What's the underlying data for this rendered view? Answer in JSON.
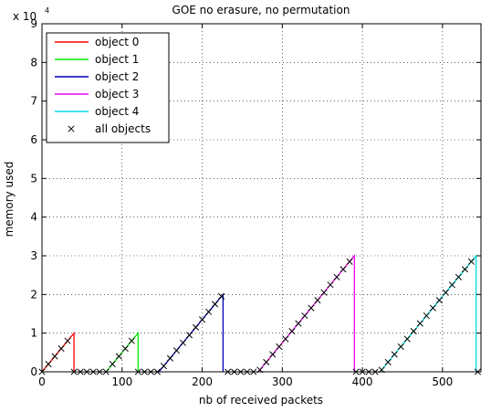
{
  "chart_data": {
    "type": "line",
    "title": "GOE no erasure, no permutation",
    "xlabel": "nb of received packets",
    "ylabel": "memory used",
    "y_exponent_base": "x 10",
    "y_exponent_power": "4",
    "xlim": [
      0,
      548
    ],
    "ylim": [
      0,
      9
    ],
    "x_ticks": [
      0,
      100,
      200,
      300,
      400,
      500
    ],
    "x_tick_labels": [
      "0",
      "100",
      "200",
      "300",
      "400",
      "500"
    ],
    "y_ticks": [
      0,
      1,
      2,
      3,
      4,
      5,
      6,
      7,
      8,
      9
    ],
    "y_tick_labels": [
      "0",
      "1",
      "2",
      "3",
      "4",
      "5",
      "6",
      "7",
      "8",
      "9"
    ],
    "grid": true,
    "legend_position": "top-left",
    "series": [
      {
        "name": "object 0",
        "color": "#ff0000",
        "x": [
          0,
          40,
          40
        ],
        "y": [
          0,
          1,
          0
        ]
      },
      {
        "name": "object 1",
        "color": "#00ee00",
        "x": [
          80,
          120,
          120
        ],
        "y": [
          0,
          1,
          0
        ]
      },
      {
        "name": "object 2",
        "color": "#0000bb",
        "x": [
          146,
          226,
          226
        ],
        "y": [
          0,
          2,
          0
        ]
      },
      {
        "name": "object 3",
        "color": "#ee00ee",
        "x": [
          270,
          390,
          390
        ],
        "y": [
          0,
          3,
          0
        ]
      },
      {
        "name": "object 4",
        "color": "#00dddd",
        "x": [
          422,
          542,
          542
        ],
        "y": [
          0,
          3,
          0
        ]
      }
    ],
    "markers": {
      "name": "all objects",
      "symbol": "x",
      "color": "#000000",
      "x": [
        0,
        8,
        16,
        24,
        32,
        40,
        48,
        56,
        64,
        72,
        80,
        88,
        96,
        104,
        112,
        120,
        128,
        136,
        144,
        152,
        160,
        168,
        176,
        184,
        192,
        200,
        208,
        216,
        224,
        232,
        240,
        248,
        256,
        264,
        272,
        280,
        288,
        296,
        304,
        312,
        320,
        328,
        336,
        344,
        352,
        360,
        368,
        376,
        384,
        392,
        400,
        408,
        416,
        424,
        432,
        440,
        448,
        456,
        464,
        472,
        480,
        488,
        496,
        504,
        512,
        520,
        528,
        536,
        544
      ],
      "y": [
        0,
        0.2,
        0.4,
        0.6,
        0.8,
        0,
        0,
        0,
        0,
        0,
        0,
        0.2,
        0.4,
        0.6,
        0.8,
        0,
        0,
        0,
        0,
        0.15,
        0.35,
        0.55,
        0.75,
        0.95,
        1.15,
        1.35,
        1.55,
        1.75,
        1.95,
        0,
        0,
        0,
        0,
        0,
        0.05,
        0.25,
        0.45,
        0.65,
        0.85,
        1.05,
        1.25,
        1.45,
        1.65,
        1.85,
        2.05,
        2.25,
        2.45,
        2.65,
        2.85,
        0,
        0,
        0,
        0,
        0.05,
        0.25,
        0.45,
        0.65,
        0.85,
        1.05,
        1.25,
        1.45,
        1.65,
        1.85,
        2.05,
        2.25,
        2.45,
        2.65,
        2.85,
        0
      ]
    }
  }
}
